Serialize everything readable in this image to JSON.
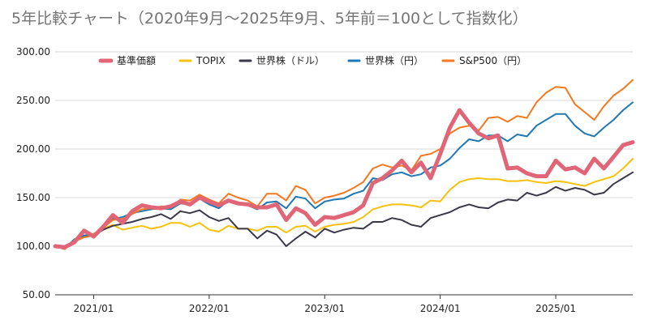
{
  "chart_data": {
    "type": "line",
    "title": "5年比較チャート（2020年9月～2025年9月、5年前＝100として指数化）",
    "xlabel": "",
    "ylabel": "",
    "ylim": [
      50,
      300
    ],
    "yticks": [
      "50.00",
      "100.00",
      "150.00",
      "200.00",
      "250.00",
      "300.00"
    ],
    "xticks": [
      "2021/01",
      "2022/01",
      "2023/01",
      "2024/01",
      "2025/01"
    ],
    "x_range": [
      "2020-09",
      "2025-09"
    ],
    "grid": true,
    "legend_position": "top",
    "x": [
      "2020-09",
      "2020-10",
      "2020-11",
      "2020-12",
      "2021-01",
      "2021-02",
      "2021-03",
      "2021-04",
      "2021-05",
      "2021-06",
      "2021-07",
      "2021-08",
      "2021-09",
      "2021-10",
      "2021-11",
      "2021-12",
      "2022-01",
      "2022-02",
      "2022-03",
      "2022-04",
      "2022-05",
      "2022-06",
      "2022-07",
      "2022-08",
      "2022-09",
      "2022-10",
      "2022-11",
      "2022-12",
      "2023-01",
      "2023-02",
      "2023-03",
      "2023-04",
      "2023-05",
      "2023-06",
      "2023-07",
      "2023-08",
      "2023-09",
      "2023-10",
      "2023-11",
      "2023-12",
      "2024-01",
      "2024-02",
      "2024-03",
      "2024-04",
      "2024-05",
      "2024-06",
      "2024-07",
      "2024-08",
      "2024-09",
      "2024-10",
      "2024-11",
      "2024-12",
      "2025-01",
      "2025-02",
      "2025-03",
      "2025-04",
      "2025-05",
      "2025-06",
      "2025-07",
      "2025-08",
      "2025-09"
    ],
    "series": [
      {
        "name": "基準価額",
        "color": "#e06677",
        "width": 5,
        "values": [
          100,
          99,
          104,
          116,
          110,
          120,
          132,
          124,
          136,
          142,
          140,
          139,
          141,
          146,
          143,
          150,
          146,
          142,
          147,
          144,
          143,
          140,
          140,
          143,
          127,
          139,
          134,
          122,
          130,
          129,
          132,
          135,
          142,
          165,
          170,
          178,
          188,
          176,
          186,
          170,
          195,
          222,
          240,
          227,
          216,
          211,
          214,
          180,
          181,
          175,
          172,
          172,
          188,
          179,
          181,
          175,
          190,
          180,
          192,
          204,
          207
        ]
      },
      {
        "name": "TOPIX",
        "color": "#f4c20d",
        "width": 2,
        "values": [
          100,
          98,
          106,
          110,
          113,
          118,
          122,
          117,
          119,
          121,
          118,
          120,
          124,
          124,
          120,
          124,
          117,
          115,
          121,
          118,
          118,
          116,
          120,
          120,
          114,
          120,
          121,
          115,
          120,
          122,
          123,
          125,
          130,
          138,
          141,
          143,
          143,
          142,
          140,
          147,
          146,
          158,
          166,
          169,
          170,
          169,
          169,
          167,
          167,
          168,
          166,
          165,
          167,
          166,
          164,
          162,
          166,
          169,
          172,
          180,
          190
        ]
      },
      {
        "name": "世界株（ドル）",
        "color": "#3c3848",
        "width": 2,
        "values": [
          100,
          97,
          107,
          111,
          111,
          117,
          121,
          123,
          125,
          128,
          130,
          133,
          128,
          136,
          134,
          137,
          130,
          126,
          129,
          118,
          118,
          108,
          116,
          112,
          100,
          108,
          115,
          109,
          118,
          114,
          117,
          119,
          118,
          125,
          125,
          129,
          127,
          122,
          120,
          129,
          132,
          135,
          140,
          143,
          140,
          139,
          145,
          148,
          147,
          155,
          152,
          155,
          161,
          157,
          160,
          158,
          153,
          155,
          164,
          170,
          176
        ]
      },
      {
        "name": "世界株（円）",
        "color": "#1f78b4",
        "width": 2,
        "values": [
          100,
          98,
          107,
          111,
          112,
          120,
          128,
          130,
          134,
          136,
          138,
          139,
          138,
          144,
          143,
          149,
          143,
          139,
          147,
          145,
          142,
          138,
          145,
          146,
          139,
          151,
          149,
          139,
          146,
          148,
          149,
          154,
          157,
          170,
          168,
          174,
          176,
          172,
          174,
          181,
          183,
          190,
          201,
          210,
          208,
          214,
          214,
          208,
          215,
          213,
          224,
          230,
          236,
          236,
          224,
          216,
          213,
          222,
          230,
          240,
          248
        ]
      },
      {
        "name": "S&P500（円）",
        "color": "#f4781e",
        "width": 2,
        "values": [
          100,
          97,
          105,
          109,
          111,
          119,
          127,
          128,
          133,
          138,
          139,
          141,
          140,
          148,
          147,
          153,
          148,
          144,
          154,
          150,
          147,
          141,
          154,
          154,
          147,
          162,
          158,
          144,
          150,
          152,
          155,
          160,
          166,
          180,
          184,
          181,
          183,
          178,
          193,
          195,
          200,
          216,
          222,
          224,
          219,
          232,
          233,
          228,
          234,
          232,
          248,
          258,
          264,
          263,
          246,
          238,
          230,
          244,
          255,
          262,
          271
        ]
      }
    ]
  }
}
